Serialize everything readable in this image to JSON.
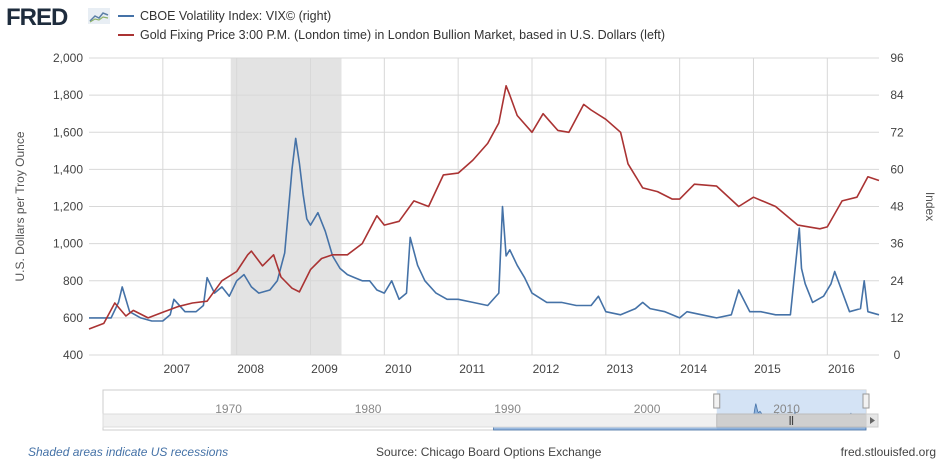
{
  "header": {
    "logo_text": "FRED",
    "logo_icon": "line-graph-icon"
  },
  "legend": [
    {
      "label": "CBOE Volatility Index: VIX© (right)",
      "color": "#4572a7"
    },
    {
      "label": "Gold Fixing Price 3:00 P.M. (London time) in London Bullion Market, based in U.S. Dollars (left)",
      "color": "#aa3333"
    }
  ],
  "footer": {
    "recession_note": "Shaded areas indicate US recessions",
    "source": "Source: Chicago Board Options Exchange",
    "site": "fred.stlouisfed.org"
  },
  "chart_data": {
    "type": "line",
    "ylabel_left": "U.S. Dollars per Troy Ounce",
    "ylabel_right": "Index",
    "ylim_left": [
      400,
      2000
    ],
    "yticks_left": [
      "400",
      "600",
      "800",
      "1,000",
      "1,200",
      "1,400",
      "1,600",
      "1,800",
      "2,000"
    ],
    "ylim_right": [
      0,
      96
    ],
    "yticks_right": [
      "0",
      "12",
      "24",
      "36",
      "48",
      "60",
      "72",
      "84",
      "96"
    ],
    "xlim": [
      2006.0,
      2016.7
    ],
    "xticks": [
      "2007",
      "2008",
      "2009",
      "2010",
      "2011",
      "2012",
      "2013",
      "2014",
      "2015",
      "2016"
    ],
    "grid": true,
    "recession": [
      2007.92,
      2009.42
    ],
    "navigator_labels": [
      "1970",
      "1980",
      "1990",
      "2000",
      "2010"
    ],
    "series": [
      {
        "name": "CBOE Volatility Index: VIX© (right)",
        "axis": "right",
        "color": "#4572a7",
        "x": [
          2006.0,
          2006.15,
          2006.3,
          2006.4,
          2006.45,
          2006.55,
          2006.7,
          2006.85,
          2007.0,
          2007.1,
          2007.15,
          2007.3,
          2007.45,
          2007.55,
          2007.6,
          2007.7,
          2007.8,
          2007.9,
          2008.0,
          2008.1,
          2008.2,
          2008.3,
          2008.45,
          2008.55,
          2008.65,
          2008.75,
          2008.8,
          2008.85,
          2008.9,
          2008.95,
          2009.0,
          2009.1,
          2009.2,
          2009.3,
          2009.4,
          2009.5,
          2009.6,
          2009.7,
          2009.8,
          2009.9,
          2010.0,
          2010.1,
          2010.2,
          2010.3,
          2010.35,
          2010.45,
          2010.55,
          2010.7,
          2010.85,
          2011.0,
          2011.2,
          2011.4,
          2011.55,
          2011.6,
          2011.65,
          2011.7,
          2011.8,
          2011.9,
          2012.0,
          2012.2,
          2012.4,
          2012.6,
          2012.8,
          2012.9,
          2013.0,
          2013.2,
          2013.4,
          2013.5,
          2013.6,
          2013.8,
          2014.0,
          2014.1,
          2014.3,
          2014.5,
          2014.7,
          2014.8,
          2014.95,
          2015.1,
          2015.3,
          2015.5,
          2015.62,
          2015.65,
          2015.7,
          2015.8,
          2015.95,
          2016.05,
          2016.1,
          2016.3,
          2016.45,
          2016.5,
          2016.55,
          2016.7
        ],
        "y": [
          12,
          12,
          12,
          17,
          22,
          14,
          12,
          11,
          11,
          13,
          18,
          14,
          14,
          16,
          25,
          20,
          22,
          19,
          24,
          26,
          22,
          20,
          21,
          24,
          33,
          60,
          70,
          62,
          52,
          44,
          42,
          46,
          40,
          32,
          28,
          26,
          25,
          24,
          24,
          21,
          20,
          24,
          18,
          20,
          38,
          29,
          24,
          20,
          18,
          18,
          17,
          16,
          20,
          48,
          32,
          34,
          29,
          25,
          20,
          17,
          17,
          16,
          16,
          19,
          14,
          13,
          15,
          17,
          15,
          14,
          12,
          14,
          13,
          12,
          13,
          21,
          14,
          14,
          13,
          13,
          41,
          28,
          23,
          17,
          19,
          23,
          27,
          14,
          15,
          24,
          14,
          13
        ]
      },
      {
        "name": "Gold Fixing Price 3:00 P.M. (London time) in London Bullion Market, based in U.S. Dollars (left)",
        "axis": "left",
        "color": "#aa3333",
        "x": [
          2006.0,
          2006.2,
          2006.35,
          2006.5,
          2006.6,
          2006.8,
          2007.0,
          2007.2,
          2007.4,
          2007.6,
          2007.8,
          2008.0,
          2008.15,
          2008.2,
          2008.35,
          2008.5,
          2008.6,
          2008.75,
          2008.85,
          2009.0,
          2009.15,
          2009.3,
          2009.5,
          2009.7,
          2009.9,
          2010.0,
          2010.2,
          2010.4,
          2010.6,
          2010.8,
          2011.0,
          2011.2,
          2011.4,
          2011.55,
          2011.65,
          2011.7,
          2011.8,
          2012.0,
          2012.15,
          2012.35,
          2012.5,
          2012.7,
          2012.8,
          2013.0,
          2013.2,
          2013.3,
          2013.5,
          2013.7,
          2013.9,
          2014.0,
          2014.2,
          2014.5,
          2014.8,
          2015.0,
          2015.3,
          2015.6,
          2015.9,
          2016.0,
          2016.2,
          2016.4,
          2016.55,
          2016.7
        ],
        "y": [
          540,
          570,
          680,
          610,
          640,
          600,
          630,
          660,
          680,
          690,
          800,
          850,
          940,
          960,
          880,
          940,
          820,
          760,
          740,
          860,
          920,
          940,
          940,
          1000,
          1150,
          1100,
          1120,
          1230,
          1200,
          1370,
          1380,
          1450,
          1540,
          1650,
          1850,
          1800,
          1690,
          1600,
          1700,
          1610,
          1600,
          1750,
          1720,
          1670,
          1600,
          1430,
          1300,
          1280,
          1240,
          1240,
          1320,
          1310,
          1200,
          1250,
          1200,
          1100,
          1080,
          1090,
          1230,
          1250,
          1360,
          1340
        ]
      }
    ]
  }
}
